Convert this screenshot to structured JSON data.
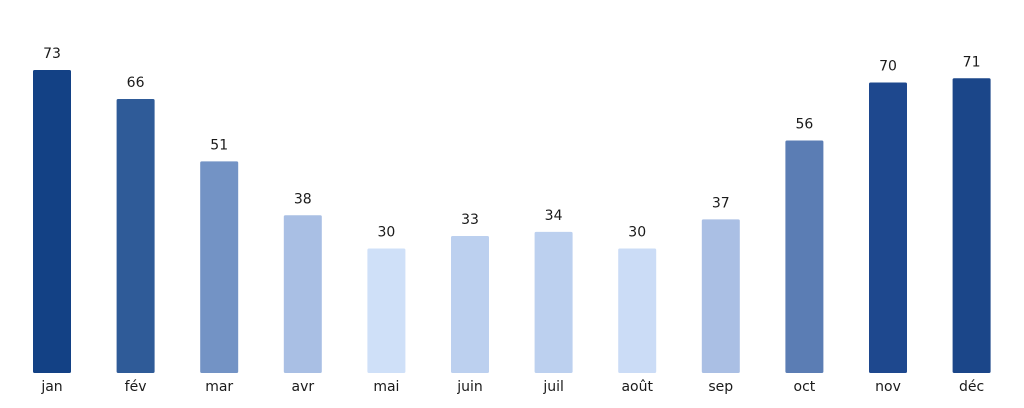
{
  "chart_data": {
    "type": "bar",
    "title": "",
    "xlabel": "",
    "ylabel": "",
    "ylim": [
      0,
      73
    ],
    "grid": false,
    "legend": "none",
    "categories": [
      "jan",
      "fév",
      "mar",
      "avr",
      "mai",
      "juin",
      "juil",
      "août",
      "sep",
      "oct",
      "nov",
      "déc"
    ],
    "values": [
      73,
      66,
      51,
      38,
      30,
      33,
      34,
      30,
      37,
      56,
      70,
      71
    ],
    "colors": [
      "#134185",
      "#2f5b98",
      "#7393c5",
      "#a9bfe4",
      "#cfe0f8",
      "#bcd0ef",
      "#bcd0ef",
      "#cbdcf6",
      "#aabfe4",
      "#5b7db4",
      "#1e488e",
      "#1b4689"
    ],
    "data_labels": true
  }
}
